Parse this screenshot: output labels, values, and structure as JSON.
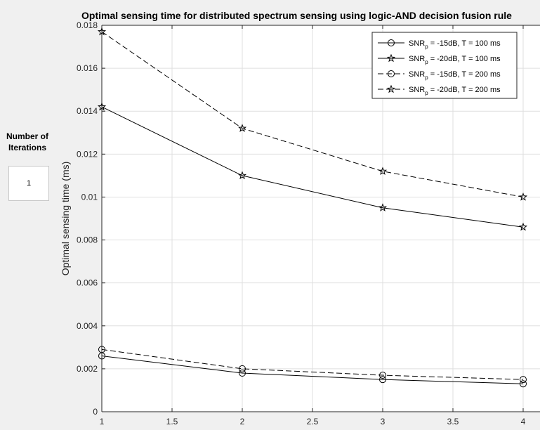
{
  "control": {
    "label_line1": "Number of",
    "label_line2": "Iterations",
    "value": "1"
  },
  "chart_data": {
    "type": "line",
    "title": "Optimal sensing time for distributed spectrum sensing using logic-AND decision fusion rule",
    "xlabel": "",
    "ylabel": "Optimal sensing time (ms)",
    "xlim": [
      1,
      4
    ],
    "ylim": [
      0,
      0.018
    ],
    "xticks": [
      1,
      1.5,
      2,
      2.5,
      3,
      3.5,
      4
    ],
    "xtick_labels": [
      "1",
      "1.5",
      "2",
      "2.5",
      "3",
      "3.5",
      "4"
    ],
    "yticks": [
      0,
      0.002,
      0.004,
      0.006,
      0.008,
      0.01,
      0.012,
      0.014,
      0.016,
      0.018
    ],
    "ytick_labels": [
      "0",
      "0.002",
      "0.004",
      "0.006",
      "0.008",
      "0.01",
      "0.012",
      "0.014",
      "0.016",
      "0.018"
    ],
    "grid": true,
    "legend_position": "top-right",
    "x": [
      1,
      2,
      3,
      4
    ],
    "series": [
      {
        "legend_pre": "SNR",
        "legend_sub": "p",
        "legend_post": " = -15dB, T = 100 ms",
        "marker": "circle",
        "line": "solid",
        "color": "#000000",
        "values": [
          0.0026,
          0.0018,
          0.0015,
          0.0013
        ]
      },
      {
        "legend_pre": "SNR",
        "legend_sub": "p",
        "legend_post": " = -20dB, T = 100 ms",
        "marker": "star",
        "line": "solid",
        "color": "#000000",
        "values": [
          0.0142,
          0.011,
          0.0095,
          0.0086
        ]
      },
      {
        "legend_pre": "SNR",
        "legend_sub": "p",
        "legend_post": " = -15dB, T = 200 ms",
        "marker": "circle",
        "line": "dashed",
        "color": "#000000",
        "values": [
          0.0029,
          0.002,
          0.0017,
          0.0015
        ]
      },
      {
        "legend_pre": "SNR",
        "legend_sub": "p",
        "legend_post": " = -20dB, T = 200 ms",
        "marker": "star",
        "line": "dashed",
        "color": "#000000",
        "values": [
          0.0177,
          0.0132,
          0.0112,
          0.01
        ]
      }
    ]
  }
}
